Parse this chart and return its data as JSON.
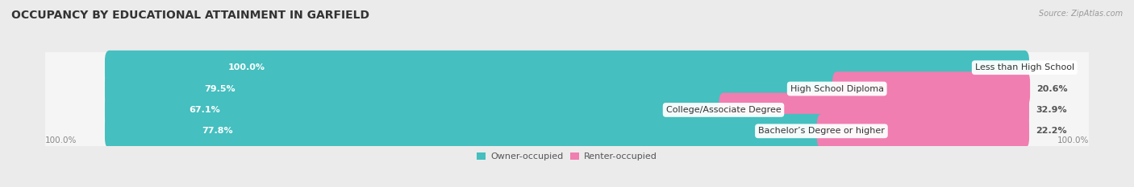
{
  "title": "OCCUPANCY BY EDUCATIONAL ATTAINMENT IN GARFIELD",
  "source": "Source: ZipAtlas.com",
  "categories": [
    "Less than High School",
    "High School Diploma",
    "College/Associate Degree",
    "Bachelor’s Degree or higher"
  ],
  "owner_pct": [
    100.0,
    79.5,
    67.1,
    77.8
  ],
  "renter_pct": [
    0.0,
    20.6,
    32.9,
    22.2
  ],
  "owner_color": "#45BFBF",
  "renter_color": "#F07EB0",
  "bg_color": "#EBEBEB",
  "bar_bg_color": "#D8D8D8",
  "row_bg_color": "#E2E2E2",
  "title_fontsize": 10,
  "label_fontsize": 8,
  "cat_fontsize": 8,
  "bar_height": 0.62,
  "left_axis_label": "100.0%",
  "right_axis_label": "100.0%"
}
